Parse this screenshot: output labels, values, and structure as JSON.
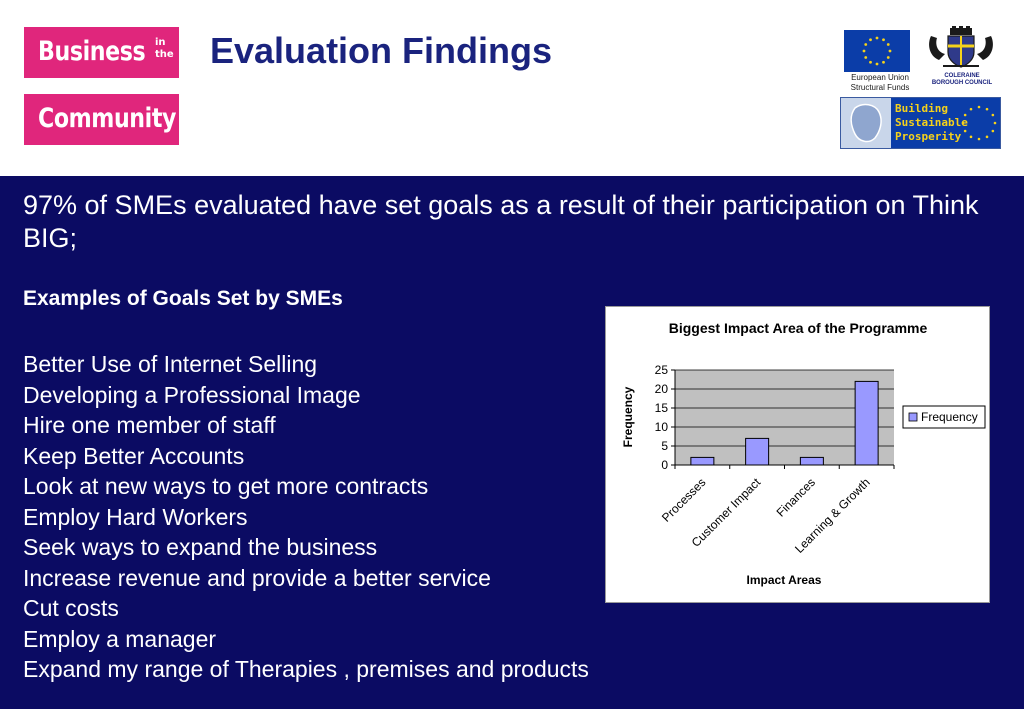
{
  "header": {
    "logo": {
      "word_top": "Business",
      "word_small_1": "in",
      "word_small_2": "the",
      "word_bottom": "Community"
    },
    "title": "Evaluation Findings",
    "eu_caption_line1": "European Union",
    "eu_caption_line2": "Structural Funds",
    "council_line1": "COLERAINE",
    "council_line2": "BOROUGH COUNCIL",
    "bsp_line1": "Building",
    "bsp_line2": "Sustainable",
    "bsp_line3": "Prosperity"
  },
  "main": {
    "headline_line1": "97% of SMEs evaluated have set goals as a result of their participation on Think",
    "headline_line2": "BIG;",
    "examples_title": "Examples of Goals Set by SMEs",
    "goals": [
      "Better Use of Internet Selling",
      "Developing a Professional Image",
      "Hire one member of staff",
      "Keep Better Accounts",
      "Look at new ways to get more contracts",
      "Employ Hard Workers",
      "Seek ways to expand the business",
      "Increase revenue and provide a better service",
      "Cut costs",
      "Employ a manager",
      "Expand my range of Therapies , premises and products"
    ]
  },
  "colors": {
    "brand_pink": "#e0267c",
    "title_navy": "#1a237e",
    "panel_navy": "#0b0b63",
    "plot_bg": "#c0c0c0",
    "bar_fill": "#9999ff"
  },
  "chart_data": {
    "type": "bar",
    "title": "Biggest Impact Area of the Programme",
    "xlabel": "Impact Areas",
    "ylabel": "Frequency",
    "categories": [
      "Processes",
      "Customer Impact",
      "Finances",
      "Learning & Growth"
    ],
    "series": [
      {
        "name": "Frequency",
        "values": [
          2,
          7,
          2,
          22
        ]
      }
    ],
    "ylim": [
      0,
      25
    ],
    "yticks": [
      0,
      5,
      10,
      15,
      20,
      25
    ],
    "grid": true,
    "legend": "right"
  }
}
